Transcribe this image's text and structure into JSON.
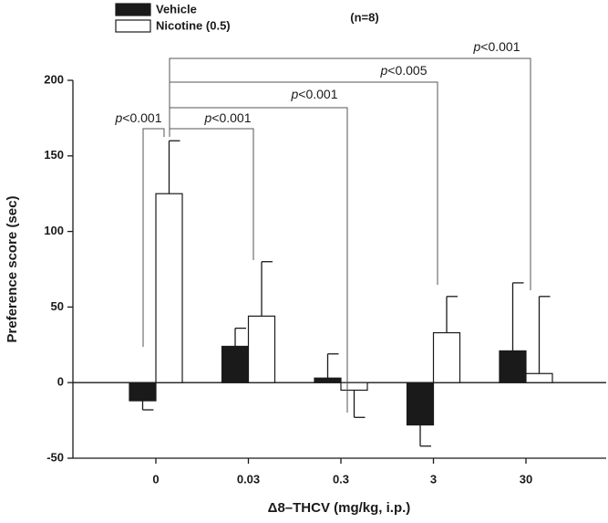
{
  "chart_data": {
    "type": "bar",
    "annotations": [
      "(n=8)",
      "p<0.001",
      "p<0.001",
      "p<0.001",
      "p<0.005",
      "p<0.001"
    ],
    "xlabel": "Δ8–THCV (mg/kg, i.p.)",
    "ylabel": "Preference score (sec)",
    "categories": [
      "0",
      "0.03",
      "0.3",
      "3",
      "30"
    ],
    "series": [
      {
        "name": "Vehicle",
        "color": "#1a1a1a",
        "values": [
          -12,
          24,
          3,
          -28,
          21
        ],
        "errors": [
          6,
          12,
          16,
          14,
          45
        ]
      },
      {
        "name": "Nicotine (0.5)",
        "color": "#ffffff",
        "values": [
          125,
          44,
          -5,
          33,
          6
        ],
        "errors": [
          35,
          36,
          18,
          24,
          51
        ]
      }
    ],
    "ylim": [
      -50,
      200
    ],
    "yticks": [
      -50,
      0,
      50,
      100,
      150,
      200
    ],
    "legend": "top-left"
  }
}
